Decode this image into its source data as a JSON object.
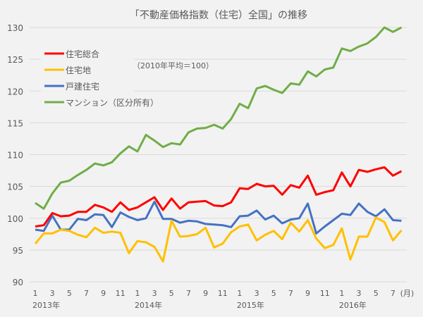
{
  "chart_data": {
    "type": "line",
    "title": "「不動産価格指数（住宅）全国」の推移",
    "annotation": "（2010年平均＝100）",
    "x_unit_label": "(月)",
    "year_labels": [
      {
        "label": "2013年",
        "index": 0
      },
      {
        "label": "2014年",
        "index": 12
      },
      {
        "label": "2015年",
        "index": 24
      },
      {
        "label": "2016年",
        "index": 36
      }
    ],
    "month_ticks": [
      "1",
      "3",
      "5",
      "7",
      "9",
      "11",
      "1",
      "3",
      "5",
      "7",
      "9",
      "11",
      "1",
      "3",
      "5",
      "7",
      "9",
      "11",
      "1",
      "3",
      "5",
      "7"
    ],
    "ylim": [
      90,
      130
    ],
    "yticks": [
      90,
      95,
      100,
      105,
      110,
      115,
      120,
      125,
      130
    ],
    "grid": true,
    "legend_position": "top-left",
    "x_start": "2013-01",
    "x_end": "2016-08",
    "series": [
      {
        "name": "住宅総合",
        "color": "#ff0000",
        "values": [
          98.7,
          98.9,
          100.8,
          100.3,
          100.4,
          101.0,
          101.0,
          102.1,
          101.7,
          101.0,
          102.5,
          101.3,
          101.7,
          102.5,
          103.3,
          101.3,
          103.1,
          101.5,
          102.5,
          102.6,
          102.7,
          102.0,
          101.9,
          102.5,
          104.7,
          104.6,
          105.4,
          105.0,
          105.1,
          103.7,
          105.2,
          104.8,
          106.7,
          103.7,
          104.1,
          104.4,
          107.2,
          105.0,
          107.6,
          107.3,
          107.7,
          108.0,
          106.7,
          107.4
        ]
      },
      {
        "name": "住宅地",
        "color": "#ffc000",
        "values": [
          96.0,
          97.6,
          97.6,
          98.2,
          98.0,
          97.4,
          97.0,
          98.5,
          97.7,
          97.9,
          97.7,
          94.5,
          96.4,
          96.2,
          95.5,
          93.2,
          99.6,
          97.1,
          97.2,
          97.5,
          98.5,
          95.4,
          96.0,
          97.8,
          98.7,
          99.0,
          96.5,
          97.4,
          98.0,
          96.7,
          99.3,
          97.9,
          99.7,
          96.8,
          95.3,
          95.8,
          98.4,
          93.5,
          97.1,
          97.1,
          100.1,
          99.4,
          96.5,
          98.1
        ]
      },
      {
        "name": "戸建住宅",
        "color": "#4472c4",
        "values": [
          98.2,
          98.0,
          100.4,
          98.2,
          98.2,
          99.9,
          99.7,
          100.6,
          100.5,
          98.6,
          100.9,
          100.2,
          99.7,
          100.0,
          102.6,
          99.9,
          99.9,
          99.3,
          99.6,
          99.5,
          99.1,
          99.0,
          98.9,
          98.6,
          100.3,
          100.4,
          101.2,
          99.8,
          100.4,
          99.2,
          99.8,
          100.0,
          102.3,
          97.6,
          98.7,
          99.7,
          100.7,
          100.5,
          102.3,
          101.0,
          100.3,
          101.4,
          99.7,
          99.6
        ]
      },
      {
        "name": "マンション（区分所有）",
        "color": "#70ad47",
        "values": [
          102.4,
          101.5,
          103.9,
          105.6,
          105.9,
          106.8,
          107.6,
          108.6,
          108.3,
          108.8,
          110.2,
          111.3,
          110.5,
          113.1,
          112.2,
          111.2,
          111.8,
          111.6,
          113.5,
          114.1,
          114.2,
          114.7,
          114.1,
          115.6,
          118.0,
          117.3,
          120.4,
          120.8,
          120.2,
          119.7,
          121.2,
          121.0,
          123.1,
          122.3,
          123.4,
          123.7,
          126.7,
          126.3,
          127.0,
          127.5,
          128.5,
          130.0,
          129.3,
          130.0
        ]
      }
    ]
  }
}
